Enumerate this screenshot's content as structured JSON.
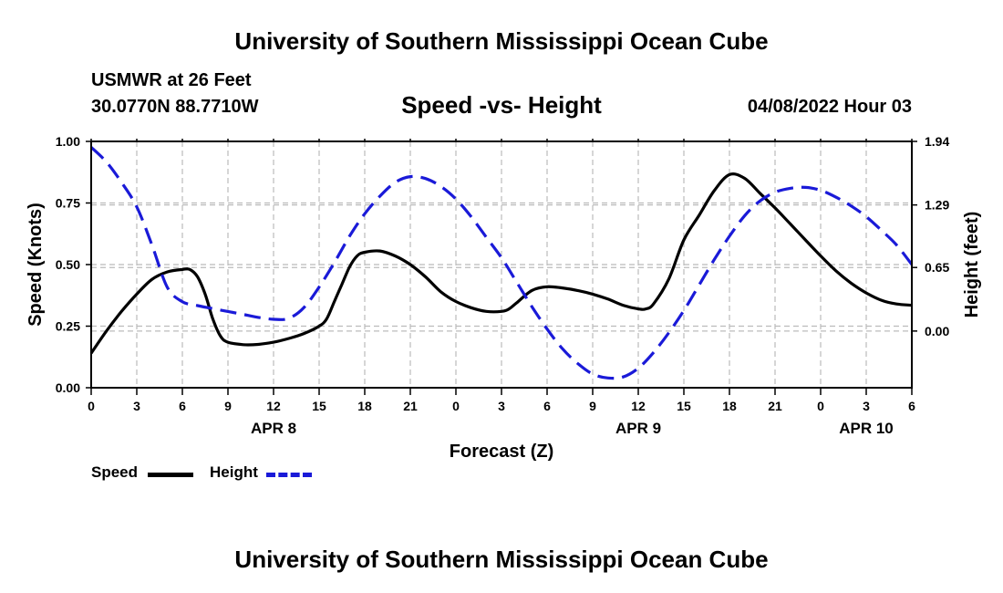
{
  "header": {
    "title": "University of Southern Mississippi Ocean Cube",
    "station": "USMWR at 26 Feet",
    "coords": "30.0770N  88.7710W",
    "chart_title": "Speed -vs- Height",
    "timestamp": "04/08/2022 Hour 03"
  },
  "footer": {
    "title": "University of Southern Mississippi Ocean Cube"
  },
  "legend": {
    "speed_label": "Speed",
    "height_label": "Height"
  },
  "colors": {
    "speed": "#000000",
    "height": "#1a1ad8",
    "grid": "#bbbbbb"
  },
  "chart_data": {
    "type": "line",
    "title": "Speed -vs- Height",
    "xlabel": "Forecast (Z)",
    "ylabel": "Speed (Knots)",
    "y2label": "Height (feet)",
    "x_range_hours": [
      0,
      54
    ],
    "x_ticks": [
      {
        "h": 0,
        "label": "0"
      },
      {
        "h": 3,
        "label": "3"
      },
      {
        "h": 6,
        "label": "6"
      },
      {
        "h": 9,
        "label": "9"
      },
      {
        "h": 12,
        "label": "12"
      },
      {
        "h": 15,
        "label": "15"
      },
      {
        "h": 18,
        "label": "18"
      },
      {
        "h": 21,
        "label": "21"
      },
      {
        "h": 24,
        "label": "0"
      },
      {
        "h": 27,
        "label": "3"
      },
      {
        "h": 30,
        "label": "6"
      },
      {
        "h": 33,
        "label": "9"
      },
      {
        "h": 36,
        "label": "12"
      },
      {
        "h": 39,
        "label": "15"
      },
      {
        "h": 42,
        "label": "18"
      },
      {
        "h": 45,
        "label": "21"
      },
      {
        "h": 48,
        "label": "0"
      },
      {
        "h": 51,
        "label": "3"
      },
      {
        "h": 54,
        "label": "6"
      }
    ],
    "date_labels": [
      {
        "h": 12,
        "label": "APR 8"
      },
      {
        "h": 36,
        "label": "APR 9"
      },
      {
        "h": 51,
        "label": "APR 10"
      }
    ],
    "ylim": [
      0,
      1
    ],
    "y_ticks": [
      {
        "v": 0,
        "label": "0.00"
      },
      {
        "v": 0.25,
        "label": "0.25"
      },
      {
        "v": 0.5,
        "label": "0.50"
      },
      {
        "v": 0.75,
        "label": "0.75"
      },
      {
        "v": 1,
        "label": "1.00"
      }
    ],
    "y2lim": [
      -0.58,
      1.94
    ],
    "y2_ticks": [
      {
        "v": 0.0,
        "label": "0.00"
      },
      {
        "v": 0.65,
        "label": "0.65"
      },
      {
        "v": 1.29,
        "label": "1.29"
      },
      {
        "v": 1.94,
        "label": "1.94"
      }
    ],
    "series": [
      {
        "name": "Speed",
        "axis": "left",
        "color": "#000000",
        "dash": false,
        "x": [
          0,
          1,
          2,
          3,
          4,
          5,
          6,
          6.5,
          7,
          7.5,
          8,
          8.5,
          9,
          10,
          11,
          12,
          13,
          14,
          15,
          15.5,
          16,
          16.5,
          17,
          17.5,
          18,
          19,
          20,
          21,
          22,
          23,
          24,
          25,
          26,
          27,
          27.5,
          28,
          29,
          30,
          31,
          32,
          33,
          34,
          35,
          36,
          36.5,
          37,
          38,
          39,
          40,
          41,
          42,
          43,
          44,
          45,
          46,
          47,
          48,
          49,
          50,
          51,
          52,
          53,
          54
        ],
        "y": [
          0.14,
          0.23,
          0.31,
          0.38,
          0.44,
          0.47,
          0.48,
          0.48,
          0.45,
          0.38,
          0.28,
          0.21,
          0.185,
          0.175,
          0.176,
          0.185,
          0.2,
          0.22,
          0.25,
          0.28,
          0.35,
          0.42,
          0.49,
          0.535,
          0.55,
          0.555,
          0.535,
          0.5,
          0.45,
          0.39,
          0.35,
          0.325,
          0.31,
          0.31,
          0.32,
          0.345,
          0.395,
          0.41,
          0.405,
          0.395,
          0.38,
          0.36,
          0.335,
          0.32,
          0.32,
          0.34,
          0.44,
          0.6,
          0.7,
          0.8,
          0.865,
          0.85,
          0.79,
          0.73,
          0.665,
          0.6,
          0.535,
          0.475,
          0.425,
          0.385,
          0.355,
          0.34,
          0.335
        ]
      },
      {
        "name": "Height",
        "axis": "right",
        "color": "#1a1ad8",
        "dash": true,
        "x": [
          0,
          1,
          2,
          3,
          4,
          5,
          6,
          7,
          8,
          9,
          10,
          11,
          12,
          13,
          14,
          15,
          16,
          17,
          18,
          19,
          20,
          21,
          22,
          23,
          24,
          25,
          26,
          27,
          28,
          29,
          30,
          31,
          32,
          33,
          34,
          35,
          36,
          37,
          38,
          39,
          40,
          41,
          42,
          43,
          44,
          45,
          46,
          47,
          48,
          49,
          50,
          51,
          52,
          53,
          54
        ],
        "y": [
          1.88,
          1.73,
          1.52,
          1.27,
          0.88,
          0.45,
          0.3,
          0.26,
          0.23,
          0.2,
          0.17,
          0.14,
          0.12,
          0.13,
          0.24,
          0.45,
          0.7,
          0.97,
          1.2,
          1.38,
          1.52,
          1.58,
          1.56,
          1.48,
          1.35,
          1.17,
          0.96,
          0.75,
          0.5,
          0.25,
          0.02,
          -0.18,
          -0.33,
          -0.44,
          -0.48,
          -0.47,
          -0.38,
          -0.22,
          -0.02,
          0.21,
          0.47,
          0.73,
          0.97,
          1.18,
          1.33,
          1.42,
          1.46,
          1.47,
          1.44,
          1.37,
          1.28,
          1.17,
          1.03,
          0.88,
          0.68
        ]
      }
    ]
  }
}
